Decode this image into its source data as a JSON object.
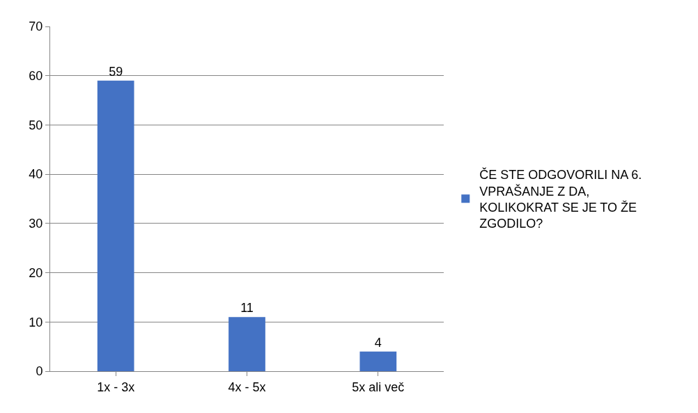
{
  "chart_data": {
    "type": "bar",
    "categories": [
      "1x - 3x",
      "4x - 5x",
      "5x ali več"
    ],
    "series": [
      {
        "name": "ČE STE ODGOVORILI NA 6. VPRAŠANJE Z DA, KOLIKOKRAT SE JE TO ŽE ZGODILO?",
        "color": "#4472c4",
        "values": [
          59,
          11,
          4
        ]
      }
    ],
    "ylim": [
      0,
      70
    ],
    "yticks": [
      0,
      10,
      20,
      30,
      40,
      50,
      60,
      70
    ],
    "grid": "y",
    "legend": "right",
    "data_labels": true
  }
}
